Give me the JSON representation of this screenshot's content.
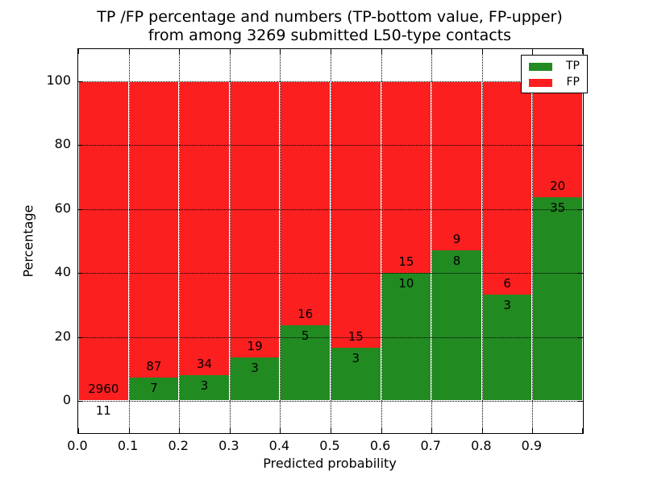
{
  "title": {
    "line1": "TP /FP percentage and numbers (TP-bottom value, FP-upper)",
    "line2": "from among 3269 submitted L50-type contacts"
  },
  "axes": {
    "xlabel": "Predicted probability",
    "ylabel": "Percentage",
    "xticks": [
      "0.0",
      "0.1",
      "0.2",
      "0.3",
      "0.4",
      "0.5",
      "0.6",
      "0.7",
      "0.8",
      "0.9"
    ],
    "yticks": [
      "0",
      "20",
      "40",
      "60",
      "80",
      "100"
    ],
    "xlim": [
      0.0,
      1.0
    ],
    "ylim": [
      -10,
      110
    ],
    "grid": "dotted"
  },
  "legend": {
    "position": "upper right",
    "entries": [
      {
        "label": "TP",
        "color": "#218a21"
      },
      {
        "label": "FP",
        "color": "#fb1f1f"
      }
    ]
  },
  "chart_data": {
    "type": "bar",
    "stacked": true,
    "normalized_to_percent": true,
    "title": "TP /FP percentage and numbers (TP-bottom value, FP-upper) from among 3269 submitted L50-type contacts",
    "xlabel": "Predicted probability",
    "ylabel": "Percentage",
    "ylim": [
      -10,
      110
    ],
    "bin_width": 0.1,
    "bin_starts": [
      0.0,
      0.1,
      0.2,
      0.3,
      0.4,
      0.5,
      0.6,
      0.7,
      0.8,
      0.9
    ],
    "series": [
      {
        "name": "TP",
        "color": "#218a21",
        "counts": [
          11,
          7,
          3,
          3,
          5,
          3,
          10,
          8,
          3,
          35
        ]
      },
      {
        "name": "FP",
        "color": "#fb1f1f",
        "counts": [
          2960,
          87,
          34,
          19,
          16,
          15,
          15,
          9,
          6,
          20
        ]
      }
    ],
    "tp_percent": [
      0.37,
      7.45,
      8.11,
      13.64,
      23.81,
      16.67,
      40.0,
      47.06,
      33.33,
      63.64
    ],
    "fp_percent": [
      99.63,
      92.55,
      91.89,
      86.36,
      76.19,
      83.33,
      60.0,
      52.94,
      66.67,
      36.36
    ],
    "total_contacts": 3269
  }
}
